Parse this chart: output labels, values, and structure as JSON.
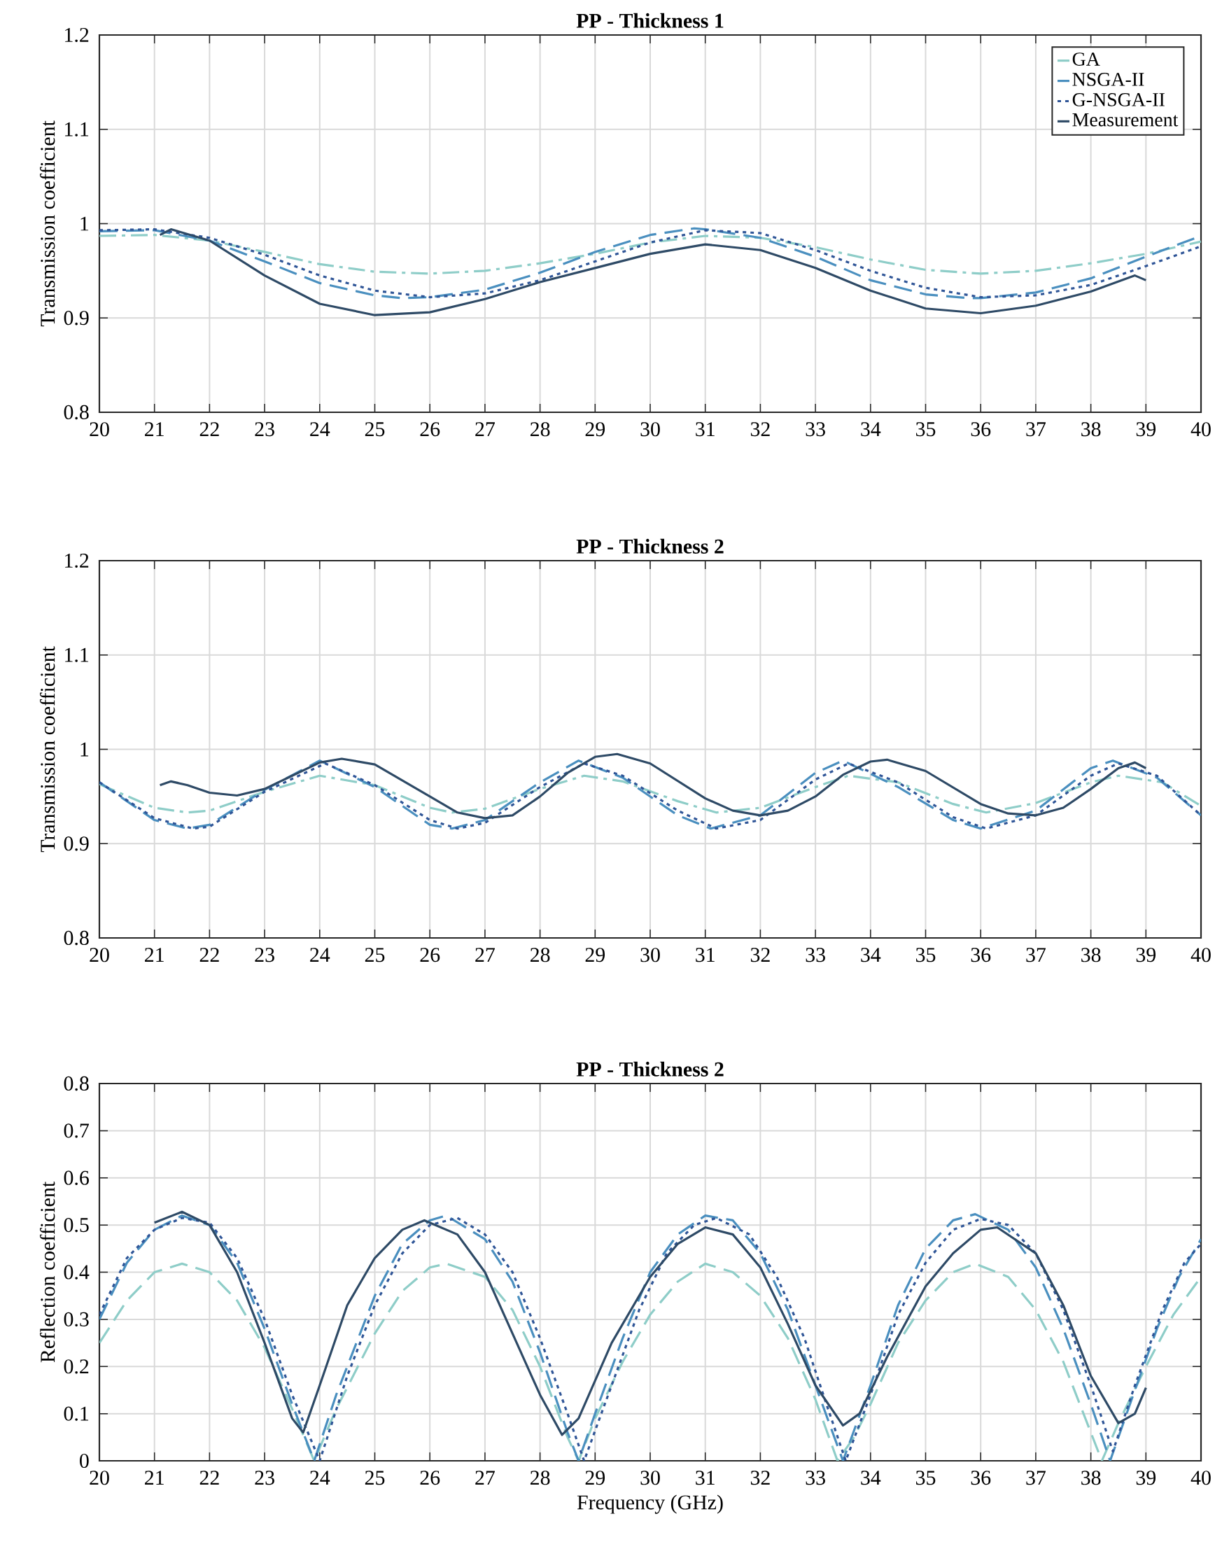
{
  "chart_data": [
    {
      "type": "line",
      "title": "PP - Thickness 1",
      "ylabel": "Transmission coefficient",
      "xlim": [
        20,
        40
      ],
      "xticks": [
        20,
        21,
        22,
        23,
        24,
        25,
        26,
        27,
        28,
        29,
        30,
        31,
        32,
        33,
        34,
        35,
        36,
        37,
        38,
        39,
        40
      ],
      "ylim": [
        0.8,
        1.2
      ],
      "yticks": [
        0.8,
        0.9,
        1,
        1.1,
        1.2
      ],
      "grid": true,
      "legend": "top right",
      "series": [
        {
          "name": "GA",
          "color": "#8ecdc8",
          "line_style": "dashdot",
          "x": [
            20,
            21,
            22,
            23,
            24,
            25,
            26,
            27,
            28,
            29,
            30,
            31,
            32,
            33,
            34,
            35,
            36,
            37,
            38,
            39,
            40
          ],
          "values": [
            0.987,
            0.988,
            0.982,
            0.97,
            0.957,
            0.949,
            0.947,
            0.95,
            0.958,
            0.968,
            0.98,
            0.987,
            0.985,
            0.975,
            0.962,
            0.951,
            0.947,
            0.95,
            0.958,
            0.968,
            0.981
          ]
        },
        {
          "name": "NSGA-II",
          "color": "#4a8fbf",
          "line_style": "dashed",
          "x": [
            20,
            21,
            22,
            23,
            24,
            25,
            25.5,
            26,
            27,
            28,
            29,
            30,
            30.8,
            31,
            32,
            33,
            34,
            35,
            35.8,
            36,
            37,
            38,
            39,
            40
          ],
          "values": [
            0.992,
            0.993,
            0.982,
            0.96,
            0.937,
            0.924,
            0.921,
            0.922,
            0.93,
            0.948,
            0.97,
            0.988,
            0.995,
            0.994,
            0.985,
            0.965,
            0.94,
            0.925,
            0.921,
            0.921,
            0.927,
            0.942,
            0.965,
            0.987
          ]
        },
        {
          "name": "G-NSGA-II",
          "color": "#2f5597",
          "line_style": "dotted",
          "x": [
            20,
            21,
            22,
            23,
            24,
            25,
            26,
            27,
            28,
            29,
            30,
            31,
            32,
            33,
            34,
            35,
            36,
            37,
            38,
            39,
            40
          ],
          "values": [
            0.993,
            0.994,
            0.985,
            0.967,
            0.945,
            0.929,
            0.922,
            0.926,
            0.94,
            0.96,
            0.98,
            0.993,
            0.99,
            0.972,
            0.95,
            0.932,
            0.922,
            0.924,
            0.935,
            0.955,
            0.976
          ]
        },
        {
          "name": "Measurement",
          "color": "#2e4a66",
          "line_style": "solid",
          "x": [
            21.1,
            21.3,
            22,
            23,
            24,
            25,
            26,
            27,
            28,
            29,
            30,
            31,
            32,
            33,
            34,
            35,
            36,
            37,
            38,
            38.8,
            39
          ],
          "values": [
            0.988,
            0.994,
            0.982,
            0.945,
            0.915,
            0.903,
            0.906,
            0.92,
            0.938,
            0.953,
            0.968,
            0.978,
            0.972,
            0.953,
            0.929,
            0.91,
            0.905,
            0.913,
            0.928,
            0.945,
            0.94
          ]
        }
      ]
    },
    {
      "type": "line",
      "title": "PP - Thickness 2",
      "ylabel": "Transmission coefficient",
      "xlim": [
        20,
        40
      ],
      "xticks": [
        20,
        21,
        22,
        23,
        24,
        25,
        26,
        27,
        28,
        29,
        30,
        31,
        32,
        33,
        34,
        35,
        36,
        37,
        38,
        39,
        40
      ],
      "ylim": [
        0.8,
        1.2
      ],
      "yticks": [
        0.8,
        0.9,
        1,
        1.1,
        1.2
      ],
      "grid": true,
      "series": [
        {
          "color": "#8ecdc8",
          "line_style": "dashdot",
          "x": [
            20,
            21,
            21.6,
            22,
            23,
            24,
            25,
            26,
            26.4,
            27,
            28,
            28.8,
            29.5,
            30.5,
            31.2,
            32,
            33,
            33.6,
            34.5,
            35.5,
            36.1,
            37,
            38,
            38.5,
            39.3,
            40
          ],
          "values": [
            0.963,
            0.938,
            0.933,
            0.935,
            0.955,
            0.972,
            0.962,
            0.938,
            0.933,
            0.937,
            0.958,
            0.972,
            0.966,
            0.945,
            0.933,
            0.938,
            0.96,
            0.972,
            0.965,
            0.942,
            0.933,
            0.943,
            0.965,
            0.972,
            0.965,
            0.94
          ]
        },
        {
          "color": "#4a8fbf",
          "line_style": "dashed",
          "x": [
            20,
            21,
            21.6,
            22,
            23,
            24,
            25,
            26,
            26.4,
            27,
            28,
            28.7,
            29.5,
            30.5,
            31.1,
            32,
            33,
            33.5,
            34.5,
            35.5,
            36,
            37,
            38,
            38.4,
            39.2,
            40
          ],
          "values": [
            0.965,
            0.925,
            0.916,
            0.92,
            0.957,
            0.988,
            0.96,
            0.92,
            0.916,
            0.925,
            0.965,
            0.988,
            0.97,
            0.93,
            0.916,
            0.93,
            0.975,
            0.988,
            0.96,
            0.925,
            0.916,
            0.935,
            0.98,
            0.988,
            0.97,
            0.93
          ]
        },
        {
          "color": "#2f5597",
          "line_style": "dotted",
          "x": [
            20,
            21,
            21.7,
            22,
            23,
            24.1,
            25,
            26,
            26.5,
            27,
            28,
            28.8,
            29.5,
            30.5,
            31.2,
            32,
            33,
            33.6,
            34.5,
            35.5,
            36.1,
            37,
            38,
            38.5,
            39.2,
            40
          ],
          "values": [
            0.965,
            0.927,
            0.916,
            0.918,
            0.955,
            0.985,
            0.962,
            0.925,
            0.916,
            0.922,
            0.96,
            0.985,
            0.972,
            0.935,
            0.916,
            0.925,
            0.968,
            0.985,
            0.965,
            0.928,
            0.916,
            0.93,
            0.972,
            0.985,
            0.972,
            0.93
          ]
        },
        {
          "color": "#2e4a66",
          "line_style": "solid",
          "x": [
            21.1,
            21.3,
            21.6,
            22,
            22.5,
            23,
            23.5,
            24,
            24.4,
            25,
            26,
            26.5,
            27,
            27.5,
            28,
            28.5,
            29,
            29.4,
            30,
            31,
            31.5,
            32,
            32.5,
            33,
            33.5,
            34,
            34.3,
            35,
            36,
            36.5,
            37,
            37.5,
            38,
            38.5,
            38.8,
            39
          ],
          "values": [
            0.962,
            0.966,
            0.962,
            0.954,
            0.951,
            0.958,
            0.972,
            0.986,
            0.99,
            0.984,
            0.95,
            0.933,
            0.927,
            0.93,
            0.95,
            0.975,
            0.992,
            0.995,
            0.985,
            0.948,
            0.935,
            0.93,
            0.935,
            0.95,
            0.973,
            0.987,
            0.989,
            0.977,
            0.942,
            0.932,
            0.93,
            0.938,
            0.958,
            0.98,
            0.986,
            0.98
          ]
        }
      ]
    },
    {
      "type": "line",
      "title": "PP - Thickness 2",
      "xlabel": "Frequency (GHz)",
      "ylabel": "Reflection coefficient",
      "xlim": [
        20,
        40
      ],
      "xticks": [
        20,
        21,
        22,
        23,
        24,
        25,
        26,
        27,
        28,
        29,
        30,
        31,
        32,
        33,
        34,
        35,
        36,
        37,
        38,
        39,
        40
      ],
      "ylim": [
        0,
        0.8
      ],
      "yticks": [
        0,
        0.1,
        0.2,
        0.3,
        0.4,
        0.5,
        0.6,
        0.7,
        0.8
      ],
      "grid": true,
      "series": [
        {
          "color": "#8ecdc8",
          "line_style": "dashed",
          "x": [
            20,
            20.5,
            21,
            21.5,
            22,
            22.5,
            23,
            23.5,
            23.9,
            24.3,
            25,
            25.5,
            26,
            26.3,
            27,
            27.5,
            28,
            28.5,
            28.7,
            29,
            29.5,
            30,
            30.5,
            31,
            31.5,
            32,
            32.5,
            33,
            33.4,
            33.7,
            34,
            34.5,
            35,
            35.5,
            35.9,
            36.5,
            37,
            37.5,
            38,
            38.2,
            38.5,
            39,
            39.5,
            40
          ],
          "values": [
            0.25,
            0.34,
            0.4,
            0.418,
            0.4,
            0.34,
            0.24,
            0.11,
            0.0,
            0.11,
            0.27,
            0.36,
            0.41,
            0.418,
            0.39,
            0.32,
            0.2,
            0.05,
            0.0,
            0.09,
            0.21,
            0.31,
            0.38,
            0.418,
            0.4,
            0.35,
            0.26,
            0.13,
            0.0,
            0.05,
            0.12,
            0.25,
            0.34,
            0.4,
            0.418,
            0.39,
            0.32,
            0.21,
            0.06,
            0.0,
            0.08,
            0.2,
            0.31,
            0.39
          ]
        },
        {
          "color": "#4a8fbf",
          "line_style": "dashed",
          "x": [
            20,
            20.5,
            21,
            21.5,
            22,
            22.5,
            23,
            23.5,
            23.9,
            24.3,
            25,
            25.5,
            26,
            26.3,
            27,
            27.5,
            28,
            28.5,
            28.7,
            29,
            29.5,
            30,
            30.5,
            31,
            31.5,
            32,
            32.5,
            33,
            33.5,
            34,
            34.5,
            35,
            35.5,
            35.9,
            36.5,
            37,
            37.5,
            38,
            38.35,
            38.8,
            39.2,
            39.6,
            40
          ],
          "values": [
            0.3,
            0.42,
            0.49,
            0.52,
            0.5,
            0.42,
            0.28,
            0.12,
            0.0,
            0.14,
            0.35,
            0.46,
            0.51,
            0.52,
            0.47,
            0.38,
            0.23,
            0.06,
            0.0,
            0.1,
            0.26,
            0.4,
            0.48,
            0.52,
            0.51,
            0.44,
            0.32,
            0.16,
            0.0,
            0.16,
            0.33,
            0.45,
            0.51,
            0.523,
            0.49,
            0.41,
            0.28,
            0.12,
            0.0,
            0.15,
            0.28,
            0.39,
            0.47
          ]
        },
        {
          "color": "#2f5597",
          "line_style": "dotted",
          "x": [
            20,
            20.5,
            21,
            21.5,
            22,
            22.5,
            23,
            23.5,
            24,
            24.5,
            25,
            25.5,
            26,
            26.5,
            27,
            27.5,
            28,
            28.5,
            28.8,
            29.3,
            29.8,
            30.3,
            30.8,
            31.2,
            31.8,
            32.3,
            32.8,
            33.2,
            33.55,
            34,
            34.5,
            35,
            35.5,
            36,
            36.5,
            37,
            37.5,
            38,
            38.4,
            38.8,
            39.3,
            39.7,
            40
          ],
          "values": [
            0.31,
            0.43,
            0.49,
            0.515,
            0.505,
            0.43,
            0.3,
            0.14,
            0.0,
            0.18,
            0.33,
            0.44,
            0.5,
            0.515,
            0.48,
            0.4,
            0.26,
            0.1,
            0.0,
            0.16,
            0.32,
            0.44,
            0.5,
            0.515,
            0.48,
            0.39,
            0.26,
            0.12,
            0.0,
            0.14,
            0.31,
            0.42,
            0.49,
            0.513,
            0.5,
            0.44,
            0.32,
            0.16,
            0.02,
            0.16,
            0.32,
            0.42,
            0.46
          ]
        },
        {
          "color": "#2e4a66",
          "line_style": "solid",
          "x": [
            21,
            21.5,
            22,
            22.5,
            23,
            23.5,
            23.7,
            24,
            24.5,
            25,
            25.5,
            25.9,
            26.5,
            27,
            27.5,
            28,
            28.4,
            28.7,
            29.3,
            30,
            30.5,
            31,
            31.5,
            32,
            32.5,
            33,
            33.5,
            33.8,
            34.3,
            35,
            35.5,
            36,
            36.3,
            37,
            37.5,
            38,
            38.5,
            38.8,
            39
          ],
          "values": [
            0.505,
            0.528,
            0.5,
            0.4,
            0.25,
            0.09,
            0.06,
            0.16,
            0.33,
            0.43,
            0.49,
            0.51,
            0.48,
            0.4,
            0.27,
            0.14,
            0.055,
            0.09,
            0.25,
            0.39,
            0.46,
            0.495,
            0.48,
            0.41,
            0.29,
            0.16,
            0.075,
            0.1,
            0.22,
            0.37,
            0.44,
            0.49,
            0.495,
            0.44,
            0.33,
            0.18,
            0.08,
            0.1,
            0.155
          ]
        }
      ]
    }
  ]
}
